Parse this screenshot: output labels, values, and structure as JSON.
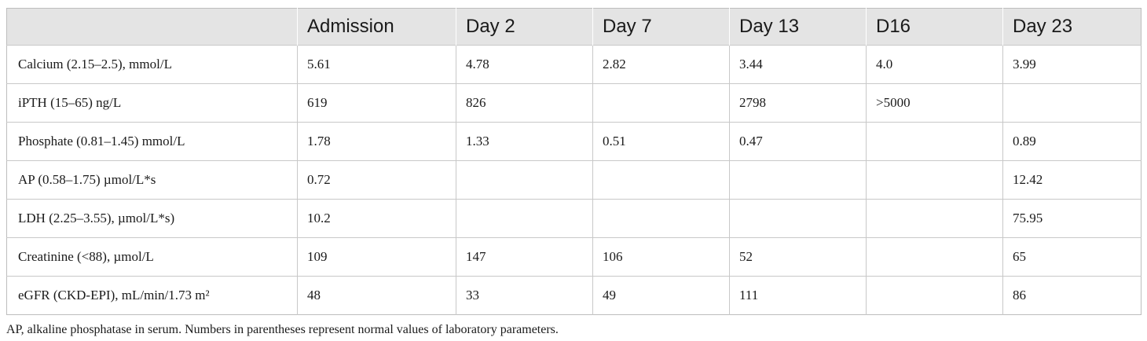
{
  "table": {
    "headers": [
      "",
      "Admission",
      "Day 2",
      "Day 7",
      "Day 13",
      "D16",
      "Day 23"
    ],
    "rows": [
      [
        "Calcium (2.15–2.5), mmol/L",
        "5.61",
        "4.78",
        "2.82",
        "3.44",
        "4.0",
        "3.99"
      ],
      [
        "iPTH (15–65) ng/L",
        "619",
        "826",
        "",
        "2798",
        ">5000",
        ""
      ],
      [
        "Phosphate (0.81–1.45) mmol/L",
        "1.78",
        "1.33",
        "0.51",
        "0.47",
        "",
        "0.89"
      ],
      [
        "AP (0.58–1.75) µmol/L*s",
        "0.72",
        "",
        "",
        "",
        "",
        "12.42"
      ],
      [
        "LDH (2.25–3.55), µmol/L*s)",
        "10.2",
        "",
        "",
        "",
        "",
        "75.95"
      ],
      [
        "Creatinine (<88), µmol/L",
        "109",
        "147",
        "106",
        "52",
        "",
        "65"
      ],
      [
        "eGFR (CKD-EPI), mL/min/1.73 m²",
        "48",
        "33",
        "49",
        "111",
        "",
        "86"
      ]
    ]
  },
  "footnote": "AP, alkaline phosphatase in serum. Numbers in parentheses represent normal values of laboratory parameters."
}
